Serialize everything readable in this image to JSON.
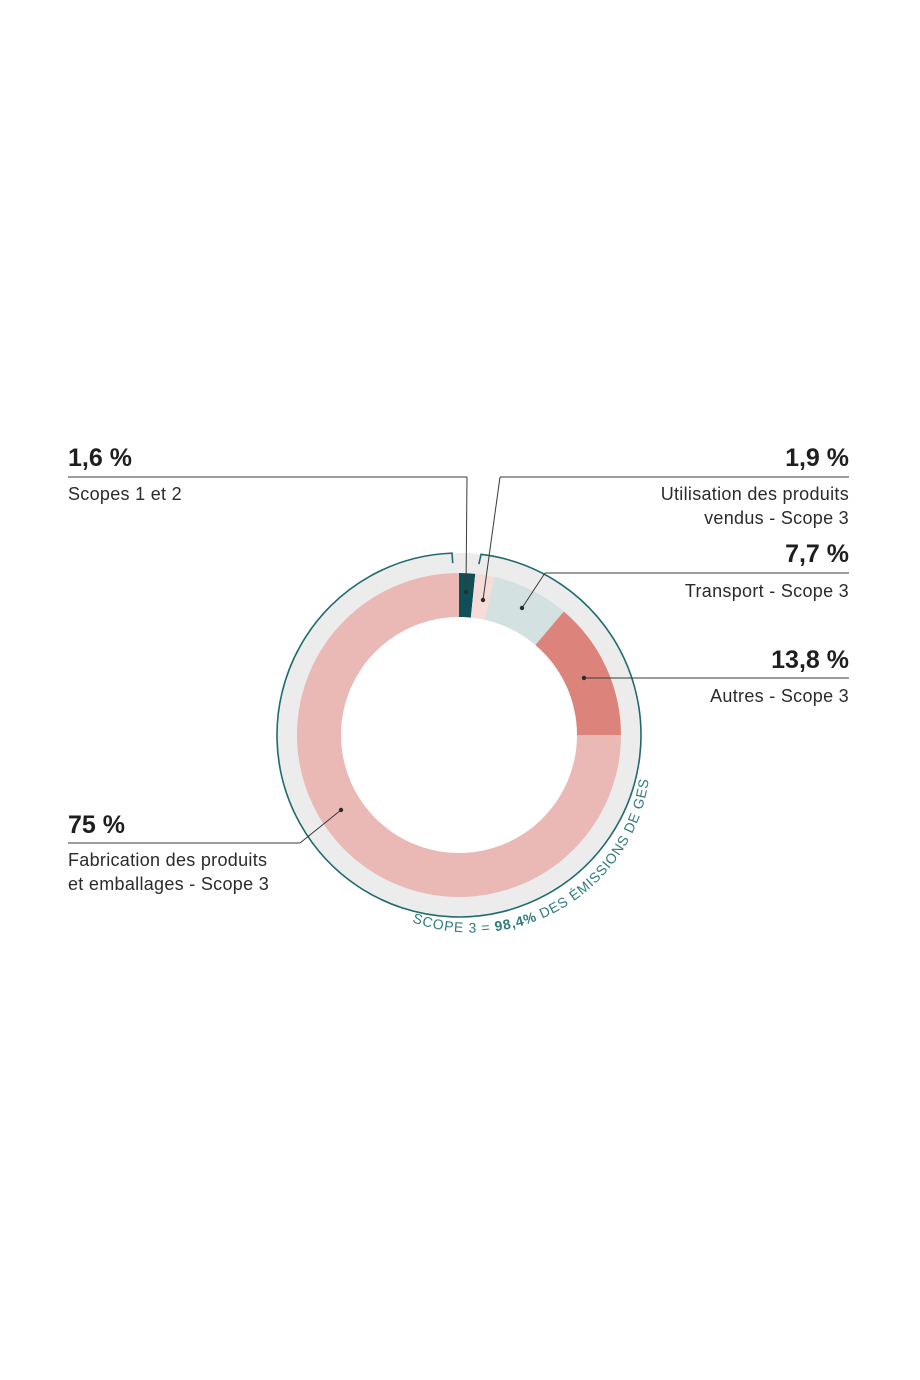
{
  "chart_data": {
    "type": "pie",
    "donut": true,
    "slices": [
      {
        "value": 1.6,
        "pct_label": "1,6 %",
        "label_lines": [
          "Scopes 1 et 2"
        ],
        "color": "#0e5056"
      },
      {
        "value": 1.9,
        "pct_label": "1,9 %",
        "label_lines": [
          "Utilisation des produits",
          "vendus - Scope 3"
        ],
        "color": "#f6dcd8"
      },
      {
        "value": 7.7,
        "pct_label": "7,7 %",
        "label_lines": [
          "Transport - Scope 3"
        ],
        "color": "#d3e1e1"
      },
      {
        "value": 13.8,
        "pct_label": "13,8 %",
        "label_lines": [
          "Autres - Scope 3"
        ],
        "color": "#dc847c"
      },
      {
        "value": 75,
        "pct_label": "75 %",
        "label_lines": [
          "Fabrication des produits",
          "et emballages - Scope 3"
        ],
        "color": "#eab9b6"
      }
    ],
    "scope3_annotation": {
      "prefix": "SCOPE 3 = ",
      "value": "98,4%",
      "suffix": " DES ÉMISSIONS DE GES",
      "color": "#1f6b6e"
    }
  }
}
